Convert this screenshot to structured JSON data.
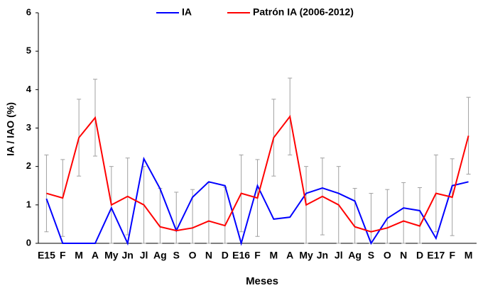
{
  "chart_data": {
    "type": "line",
    "x_label": "Meses",
    "y_label": "IA / IAO (%)",
    "categories": [
      "E15",
      "F",
      "M",
      "A",
      "My",
      "Jn",
      "Jl",
      "Ag",
      "S",
      "O",
      "N",
      "D",
      "E16",
      "F",
      "M",
      "A",
      "My",
      "Jn",
      "Jl",
      "Ag",
      "S",
      "O",
      "N",
      "D",
      "E17",
      "F",
      "M"
    ],
    "series": [
      {
        "name": "IA",
        "color": "#0000ff",
        "values": [
          1.16,
          0,
          0,
          0,
          0.92,
          0,
          2.2,
          1.42,
          0.33,
          1.2,
          1.6,
          1.5,
          0,
          1.5,
          0.63,
          0.68,
          1.3,
          1.44,
          1.3,
          1.1,
          0,
          0.65,
          0.92,
          0.85,
          0.13,
          1.5,
          1.6
        ]
      },
      {
        "name": "Patrón IA (2006-2012)",
        "color": "#ff0000",
        "values": [
          1.3,
          1.18,
          2.75,
          3.27,
          1.0,
          1.22,
          1.0,
          0.43,
          0.33,
          0.4,
          0.58,
          0.46,
          1.3,
          1.18,
          2.75,
          3.3,
          1.0,
          1.22,
          1.0,
          0.43,
          0.3,
          0.4,
          0.58,
          0.45,
          1.3,
          1.2,
          2.8
        ],
        "errors": [
          1,
          1,
          1,
          1,
          1,
          1,
          1,
          1,
          1,
          1,
          1,
          1,
          1,
          1,
          1,
          1,
          1,
          1,
          1,
          1,
          1,
          1,
          1,
          1,
          1,
          1,
          1
        ],
        "error_color": "#a0a0a0"
      }
    ],
    "ylim": [
      0,
      6
    ],
    "yticks": [
      0,
      1,
      2,
      3,
      4,
      5,
      6
    ],
    "grid": false,
    "legend": "top"
  }
}
